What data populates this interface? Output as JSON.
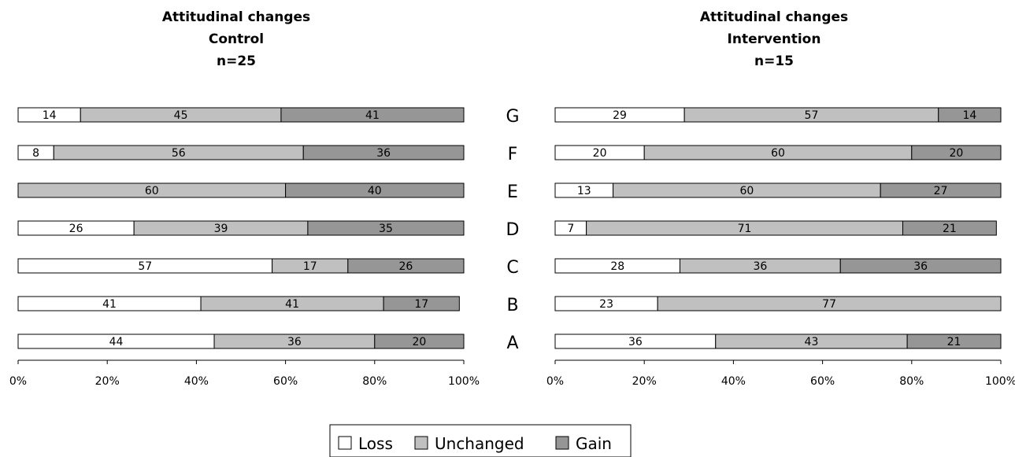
{
  "colors": {
    "loss": "#ffffff",
    "unchanged": "#c0c0c0",
    "gain": "#969696",
    "stroke": "#000000"
  },
  "chart_data": [
    {
      "type": "bar",
      "orientation": "horizontal",
      "stacked": "100%",
      "title": [
        "Attitudinal changes",
        "Control",
        "n=25"
      ],
      "categories": [
        "G",
        "F",
        "E",
        "D",
        "C",
        "B",
        "A"
      ],
      "series": [
        {
          "name": "Loss",
          "values": [
            14,
            8,
            0,
            26,
            57,
            41,
            44
          ]
        },
        {
          "name": "Unchanged",
          "values": [
            45,
            56,
            60,
            39,
            17,
            41,
            36
          ]
        },
        {
          "name": "Gain",
          "values": [
            41,
            36,
            40,
            35,
            26,
            17,
            20
          ]
        }
      ],
      "xlim": [
        0,
        100
      ],
      "xticks": [
        "0%",
        "20%",
        "40%",
        "60%",
        "80%",
        "100%"
      ]
    },
    {
      "type": "bar",
      "orientation": "horizontal",
      "stacked": "100%",
      "title": [
        "Attitudinal changes",
        "Intervention",
        "n=15"
      ],
      "categories": [
        "G",
        "F",
        "E",
        "D",
        "C",
        "B",
        "A"
      ],
      "series": [
        {
          "name": "Loss",
          "values": [
            29,
            20,
            13,
            7,
            28,
            23,
            36
          ]
        },
        {
          "name": "Unchanged",
          "values": [
            57,
            60,
            60,
            71,
            36,
            77,
            43
          ]
        },
        {
          "name": "Gain",
          "values": [
            14,
            20,
            27,
            21,
            36,
            0,
            21
          ]
        }
      ],
      "xlim": [
        0,
        100
      ],
      "xticks": [
        "0%",
        "20%",
        "40%",
        "60%",
        "80%",
        "100%"
      ]
    }
  ],
  "legend": {
    "items": [
      "Loss",
      "Unchanged",
      "Gain"
    ]
  }
}
